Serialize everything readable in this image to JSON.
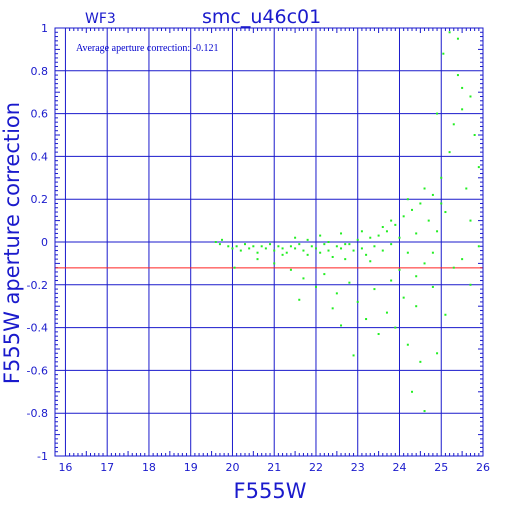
{
  "chart_data": {
    "type": "scatter",
    "title": "smc_u46c01",
    "chip_label": "WF3",
    "annotation": "Average aperture correction: -0.121",
    "xlabel": "F555W",
    "ylabel": "F555W aperture correction",
    "xlim": [
      15.75,
      26
    ],
    "ylim": [
      -1,
      1
    ],
    "x_ticks": [
      "16",
      "17",
      "18",
      "19",
      "20",
      "21",
      "22",
      "23",
      "24",
      "25",
      "26"
    ],
    "y_ticks": [
      "1",
      "0.8",
      "0.6",
      "0.4",
      "0.2",
      "0",
      "-0.2",
      "-0.4",
      "-0.6",
      "-0.8",
      "-1"
    ],
    "grid": true,
    "reference_line": {
      "y": -0.121,
      "color": "#ff2020"
    },
    "colors": {
      "axes": "#1a1acc",
      "points": "#22ee22"
    },
    "series": [
      {
        "values_description": "",
        "points": [
          [
            19.6,
            0.0
          ],
          [
            19.7,
            -0.01
          ],
          [
            19.75,
            0.01
          ],
          [
            19.9,
            -0.02
          ],
          [
            20.0,
            -0.03
          ],
          [
            20.1,
            -0.02
          ],
          [
            20.2,
            -0.04
          ],
          [
            20.3,
            -0.01
          ],
          [
            20.4,
            -0.03
          ],
          [
            20.5,
            -0.02
          ],
          [
            20.6,
            -0.05
          ],
          [
            20.7,
            -0.02
          ],
          [
            20.8,
            -0.03
          ],
          [
            20.9,
            -0.01
          ],
          [
            21.0,
            -0.04
          ],
          [
            21.1,
            -0.02
          ],
          [
            21.2,
            -0.03
          ],
          [
            21.3,
            -0.05
          ],
          [
            21.4,
            -0.02
          ],
          [
            21.5,
            -0.03
          ],
          [
            21.6,
            -0.01
          ],
          [
            21.7,
            -0.04
          ],
          [
            21.8,
            -0.06
          ],
          [
            21.9,
            -0.02
          ],
          [
            22.0,
            -0.03
          ],
          [
            22.1,
            -0.05
          ],
          [
            22.2,
            -0.01
          ],
          [
            22.3,
            -0.04
          ],
          [
            22.4,
            -0.07
          ],
          [
            22.5,
            -0.02
          ],
          [
            22.6,
            -0.03
          ],
          [
            22.7,
            -0.08
          ],
          [
            22.8,
            -0.01
          ],
          [
            22.9,
            -0.04
          ],
          [
            23.0,
            0.01
          ],
          [
            23.1,
            -0.03
          ],
          [
            23.2,
            -0.06
          ],
          [
            23.3,
            0.02
          ],
          [
            23.4,
            -0.02
          ],
          [
            23.5,
            0.03
          ],
          [
            23.6,
            -0.04
          ],
          [
            23.7,
            0.05
          ],
          [
            23.8,
            -0.01
          ],
          [
            23.9,
            0.08
          ],
          [
            24.0,
            0.02
          ],
          [
            24.1,
            0.12
          ],
          [
            24.2,
            -0.05
          ],
          [
            24.3,
            0.15
          ],
          [
            24.4,
            0.04
          ],
          [
            24.5,
            0.18
          ],
          [
            24.6,
            -0.1
          ],
          [
            24.7,
            0.1
          ],
          [
            24.8,
            0.22
          ],
          [
            24.9,
            0.05
          ],
          [
            25.0,
            0.3
          ],
          [
            25.1,
            0.14
          ],
          [
            25.2,
            0.42
          ],
          [
            25.3,
            0.55
          ],
          [
            25.4,
            0.78
          ],
          [
            25.5,
            0.62
          ],
          [
            25.6,
            0.25
          ],
          [
            25.7,
            0.1
          ],
          [
            25.8,
            0.5
          ],
          [
            25.9,
            0.35
          ],
          [
            25.2,
            0.98
          ],
          [
            25.4,
            0.95
          ],
          [
            25.05,
            0.88
          ],
          [
            24.9,
            0.6
          ],
          [
            25.5,
            0.72
          ],
          [
            25.7,
            0.68
          ],
          [
            21.4,
            -0.13
          ],
          [
            21.6,
            -0.27
          ],
          [
            21.7,
            -0.17
          ],
          [
            22.0,
            -0.21
          ],
          [
            22.2,
            -0.15
          ],
          [
            22.4,
            -0.31
          ],
          [
            22.5,
            -0.24
          ],
          [
            22.6,
            -0.39
          ],
          [
            22.8,
            -0.19
          ],
          [
            22.9,
            -0.53
          ],
          [
            23.0,
            -0.28
          ],
          [
            23.2,
            -0.36
          ],
          [
            23.4,
            -0.22
          ],
          [
            23.5,
            -0.43
          ],
          [
            23.7,
            -0.33
          ],
          [
            23.8,
            -0.18
          ],
          [
            23.9,
            -0.4
          ],
          [
            24.1,
            -0.26
          ],
          [
            24.2,
            -0.48
          ],
          [
            24.3,
            -0.7
          ],
          [
            24.4,
            -0.3
          ],
          [
            24.5,
            -0.56
          ],
          [
            24.6,
            -0.79
          ],
          [
            24.8,
            -0.21
          ],
          [
            24.9,
            -0.52
          ],
          [
            25.1,
            -0.34
          ],
          [
            25.3,
            -0.12
          ],
          [
            25.5,
            -0.08
          ],
          [
            25.7,
            -0.2
          ],
          [
            25.9,
            -0.02
          ],
          [
            20.05,
            -0.12
          ],
          [
            20.6,
            -0.08
          ],
          [
            21.0,
            -0.1
          ],
          [
            21.2,
            -0.06
          ],
          [
            21.5,
            0.02
          ],
          [
            21.8,
            0.01
          ],
          [
            22.1,
            0.03
          ],
          [
            22.3,
            0.0
          ],
          [
            22.6,
            0.04
          ],
          [
            22.7,
            -0.01
          ],
          [
            23.1,
            0.05
          ],
          [
            23.3,
            -0.09
          ],
          [
            23.6,
            0.07
          ],
          [
            23.8,
            0.1
          ],
          [
            24.0,
            -0.13
          ],
          [
            24.2,
            0.2
          ],
          [
            24.4,
            -0.16
          ],
          [
            24.6,
            0.25
          ],
          [
            24.8,
            -0.05
          ],
          [
            25.0,
            0.18
          ]
        ]
      }
    ]
  }
}
